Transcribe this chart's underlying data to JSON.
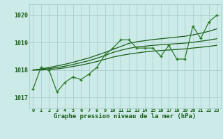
{
  "bg_color": "#cceae7",
  "grid_color": "#aacfcc",
  "line_color_dark": "#1a5e1a",
  "line_color_med": "#2a7a2a",
  "title": "Graphe pression niveau de la mer (hPa)",
  "x_labels": [
    "0",
    "1",
    "2",
    "3",
    "4",
    "5",
    "6",
    "7",
    "8",
    "9",
    "10",
    "11",
    "12",
    "13",
    "14",
    "15",
    "16",
    "17",
    "18",
    "19",
    "20",
    "21",
    "22",
    "23"
  ],
  "ylim": [
    1016.6,
    1020.4
  ],
  "yticks": [
    1017,
    1018,
    1019,
    1020
  ],
  "series": {
    "actual": [
      1017.3,
      1018.1,
      1018.0,
      1017.2,
      1017.55,
      1017.75,
      1017.65,
      1017.85,
      1018.1,
      1018.55,
      1018.8,
      1019.1,
      1019.1,
      1018.8,
      1018.8,
      1018.8,
      1018.5,
      1018.9,
      1018.4,
      1018.4,
      1019.6,
      1019.15,
      1019.75,
      1020.0
    ],
    "smooth_lo": [
      1018.0,
      1018.0,
      1018.02,
      1018.04,
      1018.08,
      1018.13,
      1018.18,
      1018.24,
      1018.31,
      1018.39,
      1018.47,
      1018.53,
      1018.58,
      1018.62,
      1018.66,
      1018.69,
      1018.71,
      1018.73,
      1018.75,
      1018.77,
      1018.8,
      1018.83,
      1018.86,
      1018.9
    ],
    "smooth_hi": [
      1018.0,
      1018.02,
      1018.05,
      1018.09,
      1018.14,
      1018.2,
      1018.27,
      1018.34,
      1018.43,
      1018.53,
      1018.64,
      1018.72,
      1018.79,
      1018.84,
      1018.87,
      1018.9,
      1018.92,
      1018.94,
      1018.96,
      1018.98,
      1019.01,
      1019.05,
      1019.09,
      1019.14
    ],
    "trend": [
      1018.0,
      1018.04,
      1018.09,
      1018.15,
      1018.21,
      1018.28,
      1018.36,
      1018.44,
      1018.54,
      1018.64,
      1018.75,
      1018.86,
      1018.97,
      1019.03,
      1019.07,
      1019.11,
      1019.14,
      1019.17,
      1019.2,
      1019.23,
      1019.28,
      1019.34,
      1019.41,
      1019.5
    ]
  }
}
